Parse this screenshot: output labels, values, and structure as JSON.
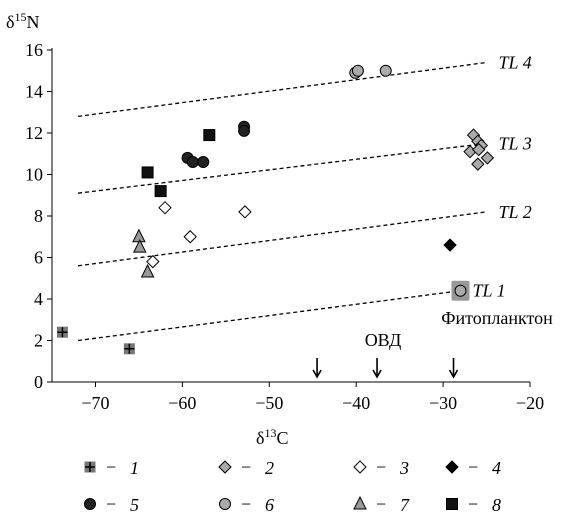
{
  "chart_data": {
    "type": "scatter",
    "x_label": {
      "symbol": "δ",
      "sup": "13",
      "element": "C"
    },
    "y_label": {
      "symbol": "δ",
      "sup": "15",
      "element": "N"
    },
    "xlim": [
      -75,
      -20
    ],
    "xticks": [
      {
        "value": -70,
        "label": "−70"
      },
      {
        "value": -60,
        "label": "−60"
      },
      {
        "value": -50,
        "label": "−50"
      },
      {
        "value": -40,
        "label": "−40"
      },
      {
        "value": -30,
        "label": "−30"
      },
      {
        "value": -20,
        "label": "−20"
      }
    ],
    "ylim": [
      0,
      16
    ],
    "yticks": [
      0,
      2,
      4,
      6,
      8,
      10,
      12,
      14,
      16
    ],
    "legend_separator": "−",
    "series": [
      {
        "name": "1",
        "marker": "plus-square",
        "color": "#777777",
        "x": [
          -73.8,
          -66.1
        ],
        "values": [
          2.4,
          1.6
        ]
      },
      {
        "name": "2",
        "marker": "diamond",
        "color": "#aaaaaa",
        "x": [
          -26.5,
          -26.0,
          -25.6,
          -26.9,
          -25.9,
          -24.9,
          -26.0
        ],
        "values": [
          11.9,
          11.6,
          11.4,
          11.1,
          11.2,
          10.8,
          10.5
        ]
      },
      {
        "name": "3",
        "marker": "diamond",
        "color": "#ffffff",
        "x": [
          -62.0,
          -59.1,
          -63.4,
          -52.8
        ],
        "values": [
          8.4,
          7.0,
          5.8,
          8.2
        ]
      },
      {
        "name": "4",
        "marker": "diamond",
        "color": "#000000",
        "x": [
          -29.2
        ],
        "values": [
          6.6
        ]
      },
      {
        "name": "5",
        "marker": "circle",
        "color": "#222222",
        "x": [
          -59.4,
          -58.8,
          -57.6,
          -52.9,
          -52.9
        ],
        "values": [
          10.8,
          10.6,
          10.6,
          12.3,
          12.1
        ]
      },
      {
        "name": "6",
        "marker": "circle",
        "color": "#aaaaaa",
        "x": [
          -40.1,
          -39.8,
          -36.6,
          -28.0
        ],
        "values": [
          14.9,
          15.0,
          15.0,
          4.4
        ]
      },
      {
        "name": "7",
        "marker": "triangle",
        "color": "#999999",
        "x": [
          -65.0,
          -64.9,
          -64.0
        ],
        "values": [
          7.0,
          6.5,
          5.3
        ]
      },
      {
        "name": "8",
        "marker": "square",
        "color": "#111111",
        "x": [
          -64.0,
          -62.5,
          -56.9
        ],
        "values": [
          10.1,
          9.2,
          11.9
        ]
      }
    ],
    "trophic_lines": [
      {
        "label": "TL 1",
        "x": [
          -72,
          -28
        ],
        "values": [
          2.0,
          4.4
        ]
      },
      {
        "label": "TL 2",
        "x": [
          -72,
          -25
        ],
        "values": [
          5.6,
          8.2
        ]
      },
      {
        "label": "TL 3",
        "x": [
          -72,
          -25
        ],
        "values": [
          9.1,
          11.5
        ]
      },
      {
        "label": "TL 4",
        "x": [
          -72,
          -25
        ],
        "values": [
          12.8,
          15.4
        ]
      }
    ],
    "annotations": [
      {
        "text": "Фитопланктон"
      },
      {
        "text": "ОВД"
      }
    ],
    "arrows_x": [
      -44.5,
      -37.6,
      -28.8
    ]
  }
}
